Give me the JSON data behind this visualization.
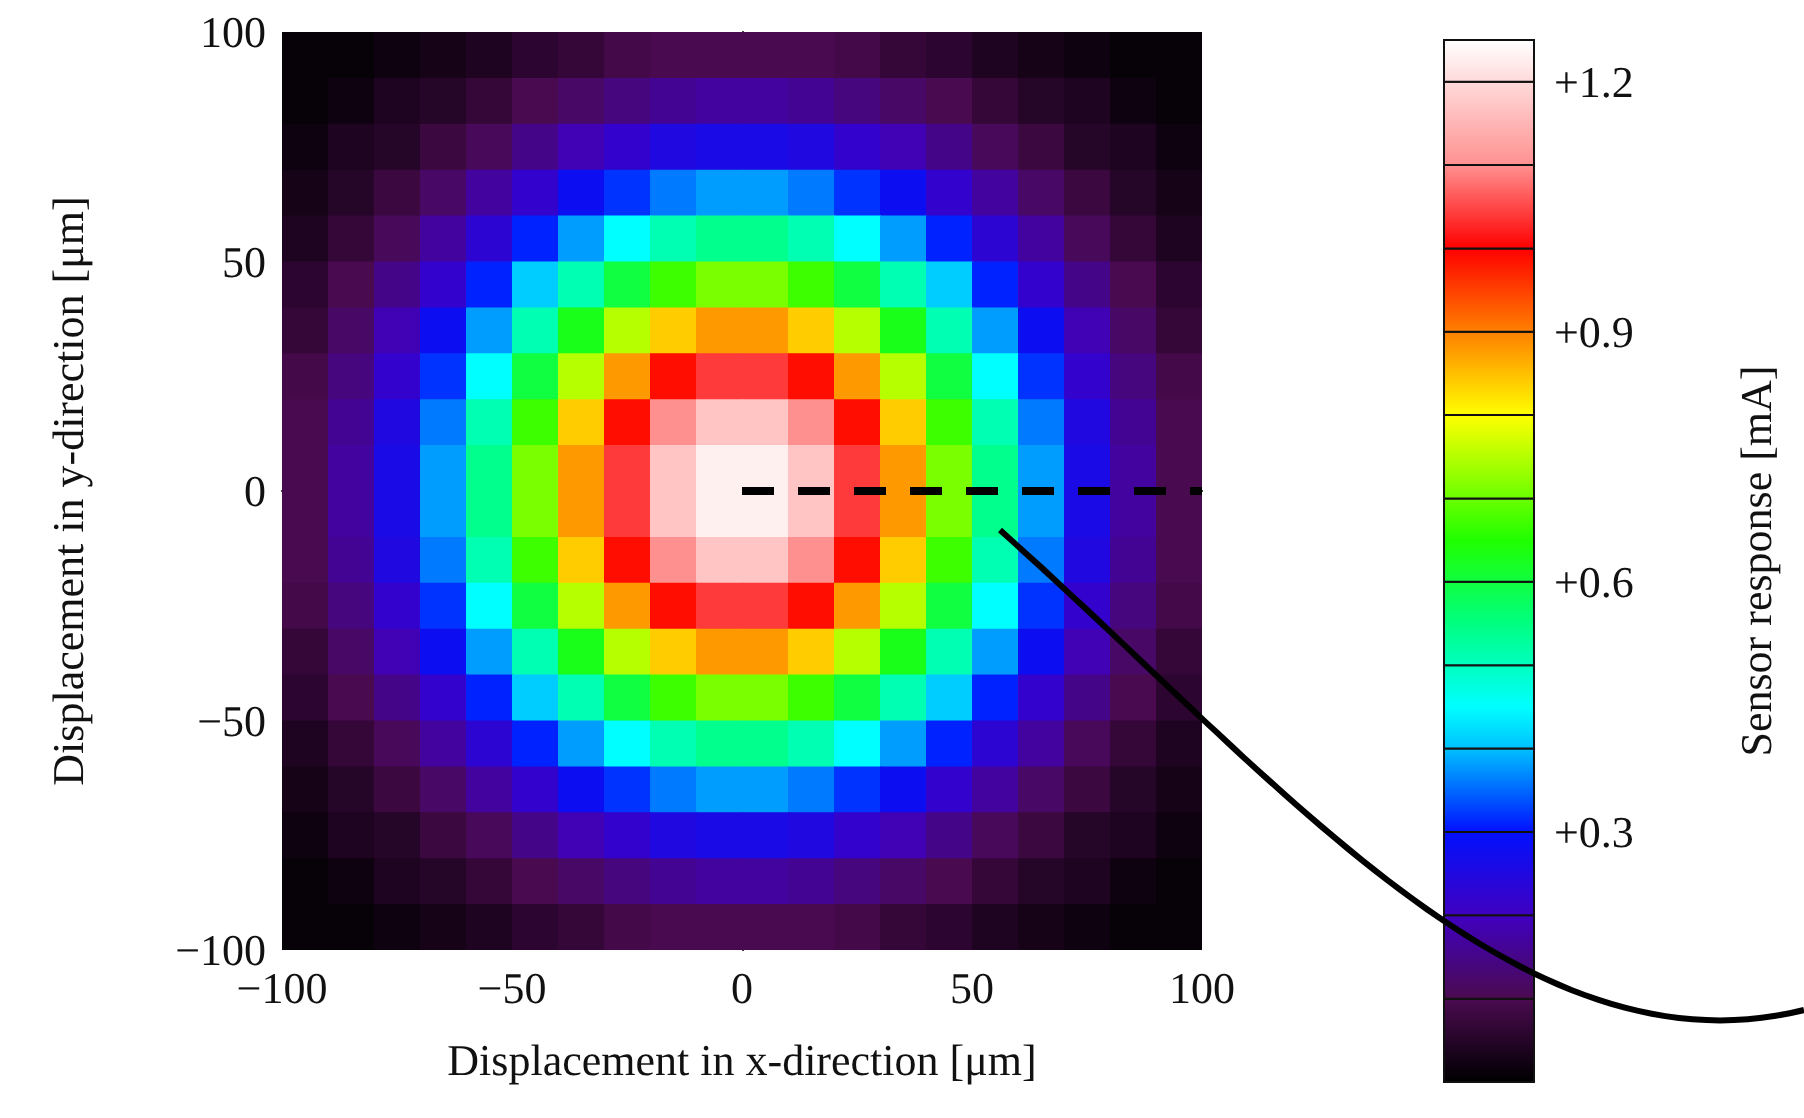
{
  "chart_data": {
    "type": "heatmap",
    "xlabel": "Displacement in x-direction [μm]",
    "ylabel": "Displacement in y-direction [μm]",
    "clabel": "Sensor response [mA]",
    "x": [
      -95,
      -85,
      -75,
      -65,
      -55,
      -45,
      -35,
      -25,
      -15,
      -5,
      5,
      15,
      25,
      35,
      45,
      55,
      65,
      75,
      85,
      95
    ],
    "y": [
      95,
      85,
      75,
      65,
      55,
      45,
      35,
      25,
      15,
      5,
      -5,
      -15,
      -25,
      -35,
      -45,
      -55,
      -65,
      -75,
      -85,
      -95
    ],
    "xlim": [
      -100,
      100
    ],
    "ylim": [
      -100,
      100
    ],
    "xticks": [
      {
        "value": -100,
        "label": "−100"
      },
      {
        "value": -50,
        "label": "−50"
      },
      0,
      50,
      100
    ],
    "yticks": [
      {
        "value": -100,
        "label": "−100"
      },
      {
        "value": -50,
        "label": "−50"
      },
      0,
      50,
      100
    ],
    "series": [
      {
        "type": "line",
        "x": [
          0,
          100
        ],
        "values": [
          0,
          0
        ],
        "color": "#000000",
        "line_style": "dashed"
      }
    ],
    "clim": [
      0,
      1.25
    ],
    "cticks": [
      {
        "value": 0.3,
        "label": "+0.3"
      },
      {
        "value": 0.6,
        "label": "+0.6"
      },
      {
        "value": 0.9,
        "label": "+0.9"
      },
      {
        "value": 1.2,
        "label": "+1.2"
      }
    ],
    "cells": [
      [
        0.01,
        0.01,
        0.02,
        0.03,
        0.04,
        0.06,
        0.07,
        0.09,
        0.1,
        0.1,
        0.1,
        0.1,
        0.09,
        0.07,
        0.06,
        0.04,
        0.03,
        0.02,
        0.01,
        0.01
      ],
      [
        0.01,
        0.02,
        0.04,
        0.05,
        0.07,
        0.1,
        0.12,
        0.14,
        0.16,
        0.17,
        0.17,
        0.16,
        0.14,
        0.12,
        0.1,
        0.07,
        0.05,
        0.04,
        0.02,
        0.01
      ],
      [
        0.02,
        0.04,
        0.05,
        0.08,
        0.11,
        0.15,
        0.19,
        0.22,
        0.25,
        0.26,
        0.26,
        0.25,
        0.22,
        0.19,
        0.15,
        0.11,
        0.08,
        0.05,
        0.04,
        0.02
      ],
      [
        0.03,
        0.05,
        0.08,
        0.12,
        0.17,
        0.22,
        0.28,
        0.32,
        0.36,
        0.38,
        0.38,
        0.36,
        0.32,
        0.28,
        0.22,
        0.17,
        0.12,
        0.08,
        0.05,
        0.03
      ],
      [
        0.04,
        0.07,
        0.11,
        0.17,
        0.23,
        0.31,
        0.38,
        0.45,
        0.51,
        0.54,
        0.54,
        0.51,
        0.45,
        0.38,
        0.31,
        0.23,
        0.17,
        0.11,
        0.07,
        0.04
      ],
      [
        0.06,
        0.1,
        0.15,
        0.22,
        0.31,
        0.41,
        0.51,
        0.6,
        0.67,
        0.71,
        0.71,
        0.67,
        0.6,
        0.51,
        0.41,
        0.31,
        0.22,
        0.15,
        0.1,
        0.06
      ],
      [
        0.07,
        0.12,
        0.19,
        0.28,
        0.38,
        0.51,
        0.63,
        0.75,
        0.84,
        0.88,
        0.88,
        0.84,
        0.75,
        0.63,
        0.51,
        0.38,
        0.28,
        0.19,
        0.12,
        0.07
      ],
      [
        0.09,
        0.14,
        0.22,
        0.32,
        0.45,
        0.6,
        0.75,
        0.88,
        0.99,
        1.04,
        1.04,
        0.99,
        0.88,
        0.75,
        0.6,
        0.45,
        0.32,
        0.22,
        0.14,
        0.09
      ],
      [
        0.1,
        0.16,
        0.25,
        0.36,
        0.51,
        0.67,
        0.84,
        0.99,
        1.1,
        1.17,
        1.17,
        1.1,
        0.99,
        0.84,
        0.67,
        0.51,
        0.36,
        0.25,
        0.16,
        0.1
      ],
      [
        0.1,
        0.17,
        0.26,
        0.38,
        0.54,
        0.71,
        0.88,
        1.04,
        1.17,
        1.23,
        1.23,
        1.17,
        1.04,
        0.88,
        0.71,
        0.54,
        0.38,
        0.26,
        0.17,
        0.1
      ],
      [
        0.1,
        0.17,
        0.26,
        0.38,
        0.54,
        0.71,
        0.88,
        1.04,
        1.17,
        1.23,
        1.23,
        1.17,
        1.04,
        0.88,
        0.71,
        0.54,
        0.38,
        0.26,
        0.17,
        0.1
      ],
      [
        0.1,
        0.16,
        0.25,
        0.36,
        0.51,
        0.67,
        0.84,
        0.99,
        1.1,
        1.17,
        1.17,
        1.1,
        0.99,
        0.84,
        0.67,
        0.51,
        0.36,
        0.25,
        0.16,
        0.1
      ],
      [
        0.09,
        0.14,
        0.22,
        0.32,
        0.45,
        0.6,
        0.75,
        0.88,
        0.99,
        1.04,
        1.04,
        0.99,
        0.88,
        0.75,
        0.6,
        0.45,
        0.32,
        0.22,
        0.14,
        0.09
      ],
      [
        0.07,
        0.12,
        0.19,
        0.28,
        0.38,
        0.51,
        0.63,
        0.75,
        0.84,
        0.88,
        0.88,
        0.84,
        0.75,
        0.63,
        0.51,
        0.38,
        0.28,
        0.19,
        0.12,
        0.07
      ],
      [
        0.06,
        0.1,
        0.15,
        0.22,
        0.31,
        0.41,
        0.51,
        0.6,
        0.67,
        0.71,
        0.71,
        0.67,
        0.6,
        0.51,
        0.41,
        0.31,
        0.22,
        0.15,
        0.1,
        0.06
      ],
      [
        0.04,
        0.07,
        0.11,
        0.17,
        0.23,
        0.31,
        0.38,
        0.45,
        0.51,
        0.54,
        0.54,
        0.51,
        0.45,
        0.38,
        0.31,
        0.23,
        0.17,
        0.11,
        0.07,
        0.04
      ],
      [
        0.03,
        0.05,
        0.08,
        0.12,
        0.17,
        0.22,
        0.28,
        0.32,
        0.36,
        0.38,
        0.38,
        0.36,
        0.32,
        0.28,
        0.22,
        0.17,
        0.12,
        0.08,
        0.05,
        0.03
      ],
      [
        0.02,
        0.04,
        0.05,
        0.08,
        0.11,
        0.15,
        0.19,
        0.22,
        0.25,
        0.26,
        0.26,
        0.25,
        0.22,
        0.19,
        0.15,
        0.11,
        0.08,
        0.05,
        0.04,
        0.02
      ],
      [
        0.01,
        0.02,
        0.04,
        0.05,
        0.07,
        0.1,
        0.12,
        0.14,
        0.16,
        0.17,
        0.17,
        0.16,
        0.14,
        0.12,
        0.1,
        0.07,
        0.05,
        0.04,
        0.02,
        0.01
      ],
      [
        0.01,
        0.01,
        0.02,
        0.03,
        0.04,
        0.06,
        0.07,
        0.09,
        0.1,
        0.1,
        0.1,
        0.1,
        0.09,
        0.07,
        0.06,
        0.04,
        0.03,
        0.02,
        0.01,
        0.01
      ]
    ]
  }
}
